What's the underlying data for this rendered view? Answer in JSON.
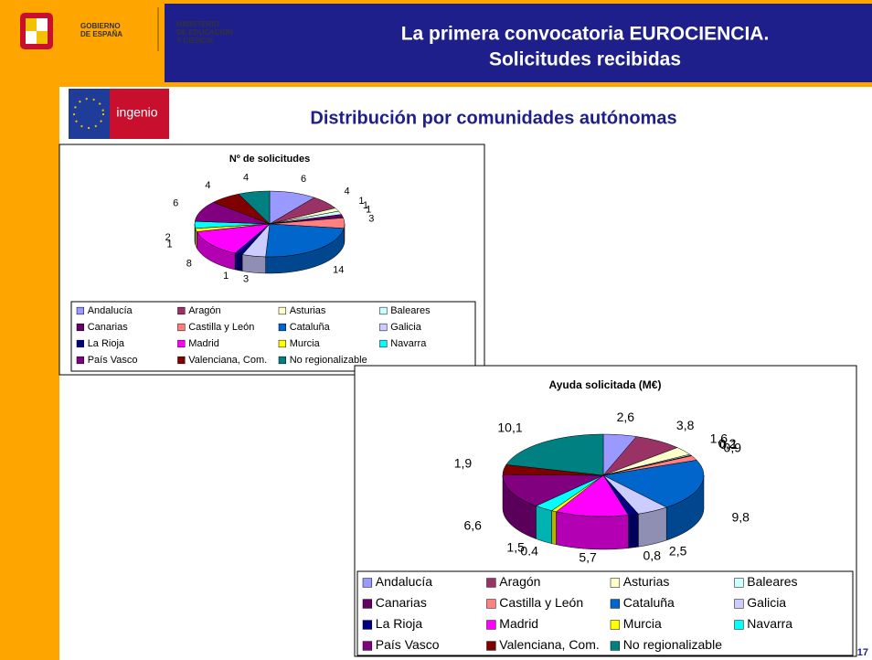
{
  "header": {
    "government": [
      "GOBIERNO",
      "DE ESPAÑA"
    ],
    "ministry": [
      "MINISTERIO",
      "DE EDUCACIÓN",
      "Y CIENCIA"
    ],
    "title": [
      "La primera convocatoria EUROCIENCIA.",
      "Solicitudes recibidas"
    ]
  },
  "logo_text": "ingenio",
  "subtitle": "Distribución por comunidades autónomas",
  "page_number": "17",
  "chart_data": [
    {
      "type": "pie",
      "title": "Nº de solicitudes",
      "categories": [
        "Andalucía",
        "Aragón",
        "Asturias",
        "Baleares",
        "Canarias",
        "Castilla y León",
        "Cataluña",
        "Galicia",
        "La Rioja",
        "Madrid",
        "Murcia",
        "Navarra",
        "País Vasco",
        "Valenciana, Com.",
        "No regionalizable"
      ],
      "values": [
        6,
        4,
        1,
        1,
        1,
        3,
        14,
        3,
        1,
        8,
        1,
        2,
        6,
        4,
        4
      ],
      "colors": [
        "#9999ff",
        "#993366",
        "#ffffcc",
        "#ccffff",
        "#660066",
        "#ff8080",
        "#0066cc",
        "#ccccff",
        "#000080",
        "#ff00ff",
        "#ffff00",
        "#00ffff",
        "#800080",
        "#800000",
        "#008080"
      ],
      "legend": "bottom"
    },
    {
      "type": "pie",
      "title": "Ayuda solicitada (M€)",
      "categories": [
        "Andalucía",
        "Aragón",
        "Asturias",
        "Baleares",
        "Canarias",
        "Castilla y León",
        "Cataluña",
        "Galicia",
        "La Rioja",
        "Madrid",
        "Murcia",
        "Navarra",
        "País Vasco",
        "Valenciana, Com.",
        "No regionalizable"
      ],
      "values": [
        2.6,
        3.8,
        1.6,
        0.2,
        0.1,
        0.9,
        9.8,
        2.5,
        0.8,
        5.7,
        0.4,
        1.5,
        6.6,
        1.9,
        10.1
      ],
      "value_labels": [
        "2,6",
        "3,8",
        "1,6",
        "0,2",
        "0,1",
        "0,9",
        "9,8",
        "2,5",
        "0,8",
        "5,7",
        "0.4",
        "1,5",
        "6,6",
        "1,9",
        "10,1"
      ],
      "colors": [
        "#9999ff",
        "#993366",
        "#ffffcc",
        "#ccffff",
        "#660066",
        "#ff8080",
        "#0066cc",
        "#ccccff",
        "#000080",
        "#ff00ff",
        "#ffff00",
        "#00ffff",
        "#800080",
        "#800000",
        "#008080"
      ],
      "legend": "bottom"
    }
  ]
}
